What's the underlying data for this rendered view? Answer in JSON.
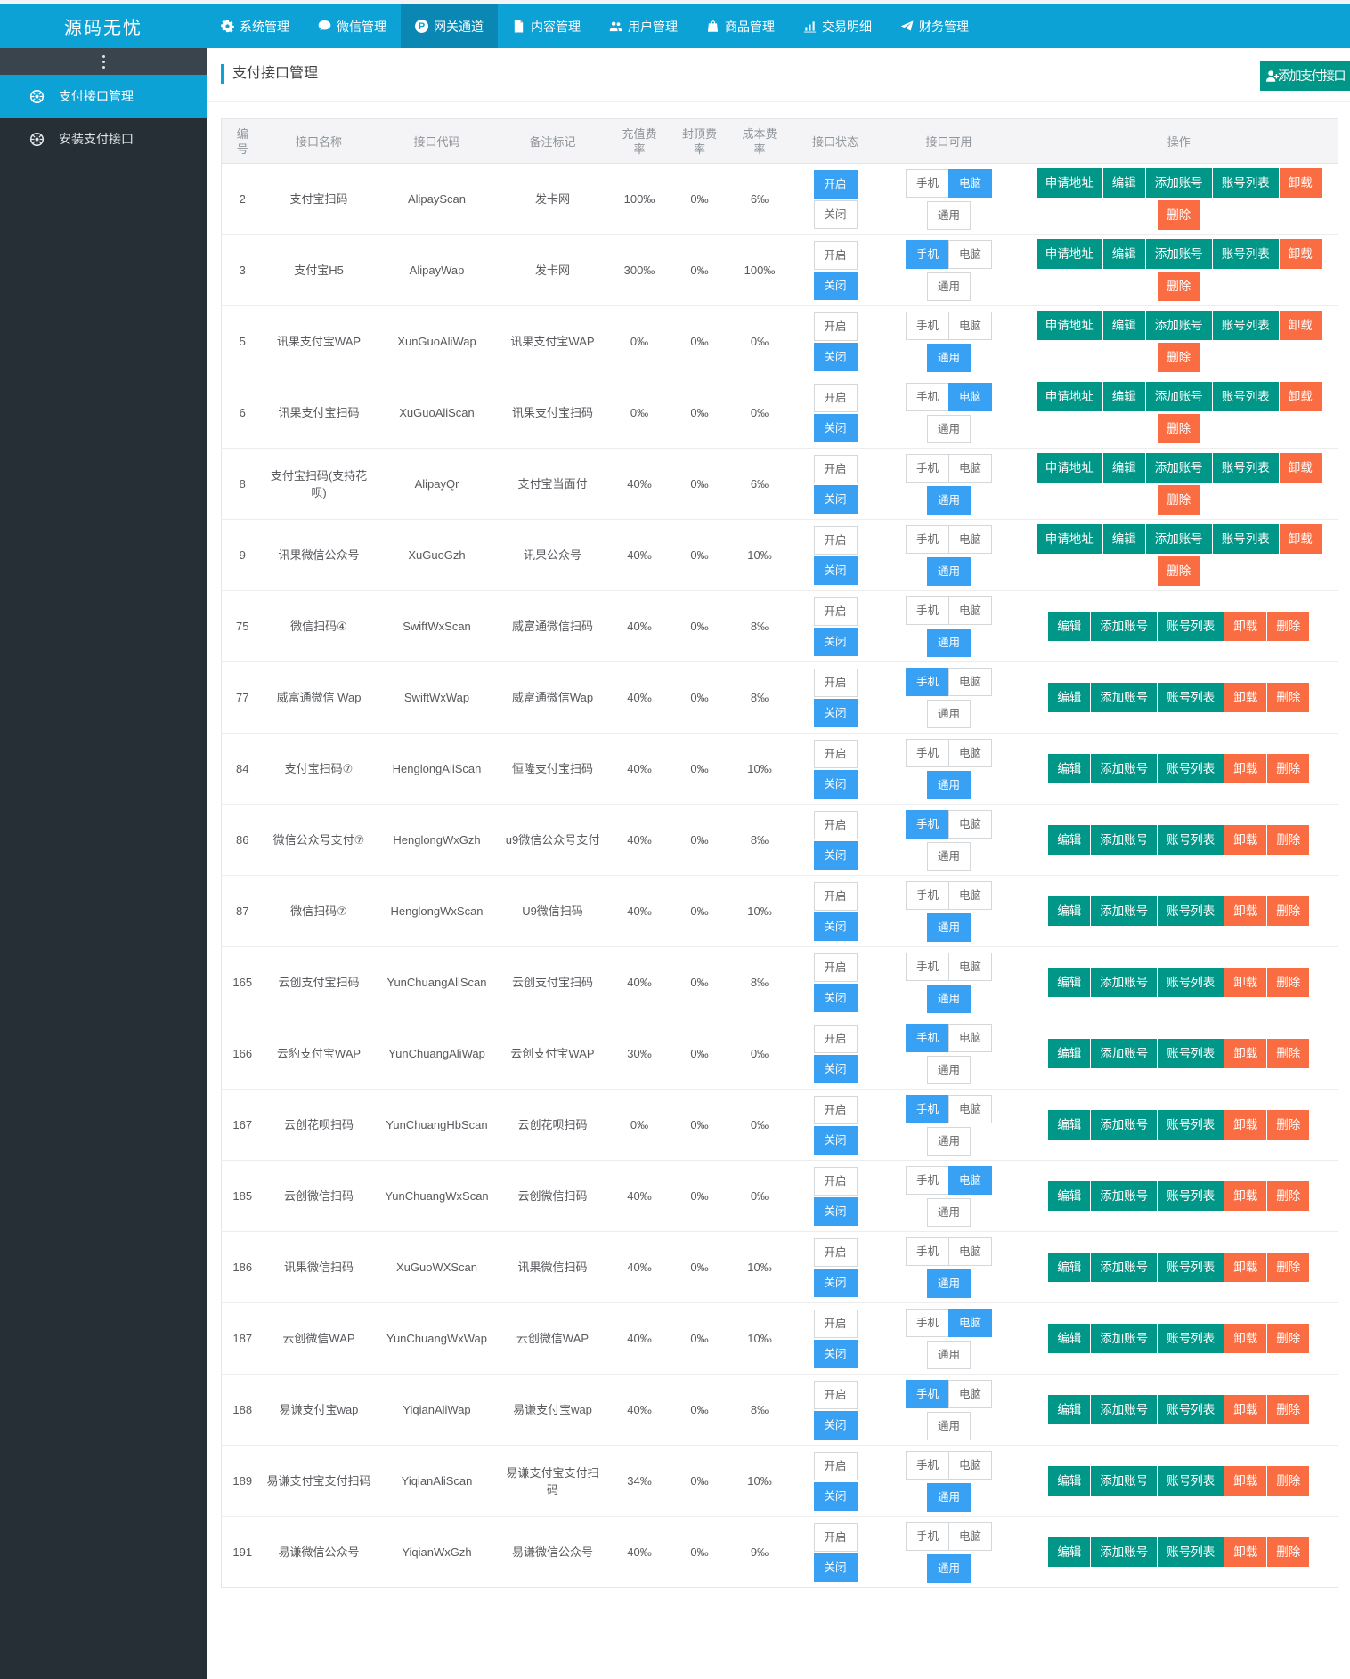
{
  "colors": {
    "nav": "#0CA2D6",
    "blue": "#38A1F3",
    "green": "#009688",
    "orange": "#FA6C41",
    "sidebar": "#262F36",
    "sidebar-strip": "#3A444C"
  },
  "navbar": {
    "logo": "源码无忧",
    "items": [
      {
        "label": "系统管理",
        "icon": "gear",
        "active": false
      },
      {
        "label": "微信管理",
        "icon": "comment",
        "active": false
      },
      {
        "label": "网关通道",
        "icon": "gateway",
        "active": true
      },
      {
        "label": "内容管理",
        "icon": "doc",
        "active": false
      },
      {
        "label": "用户管理",
        "icon": "users",
        "active": false
      },
      {
        "label": "商品管理",
        "icon": "bag",
        "active": false
      },
      {
        "label": "交易明细",
        "icon": "chart",
        "active": false
      },
      {
        "label": "财务管理",
        "icon": "plane",
        "active": false
      }
    ]
  },
  "sidebar": {
    "items": [
      {
        "label": "支付接口管理",
        "icon": "wheel",
        "active": true
      },
      {
        "label": "安装支付接口",
        "icon": "wheel",
        "active": false
      }
    ]
  },
  "page": {
    "title": "支付接口管理",
    "add_button": "添加支付接口"
  },
  "table": {
    "columns": [
      "编号",
      "接口名称",
      "接口代码",
      "备注标记",
      "充值费率",
      "封顶费率",
      "成本费率",
      "接口状态",
      "接口可用",
      "操作"
    ],
    "status_labels": {
      "on": "开启",
      "off": "关闭"
    },
    "avail_labels": {
      "phone": "手机",
      "pc": "电脑",
      "common": "通用"
    },
    "actions": [
      {
        "key": "apply",
        "label": "申请地址",
        "color": "green"
      },
      {
        "key": "edit",
        "label": "编辑",
        "color": "green"
      },
      {
        "key": "add",
        "label": "添加账号",
        "color": "green"
      },
      {
        "key": "list",
        "label": "账号列表",
        "color": "green"
      },
      {
        "key": "uninstall",
        "label": "卸载",
        "color": "orange"
      },
      {
        "key": "delete",
        "label": "删除",
        "color": "orange"
      }
    ],
    "rows": [
      {
        "id": "2",
        "name": "支付宝扫码",
        "code": "AlipayScan",
        "remark": "发卡网",
        "recharge": "100‰",
        "cap": "0‰",
        "cost": "6‰",
        "status": "on",
        "available": "pc",
        "has_apply": true
      },
      {
        "id": "3",
        "name": "支付宝H5",
        "code": "AlipayWap",
        "remark": "发卡网",
        "recharge": "300‰",
        "cap": "0‰",
        "cost": "100‰",
        "status": "off",
        "available": "phone",
        "has_apply": true
      },
      {
        "id": "5",
        "name": "讯果支付宝WAP",
        "code": "XunGuoAliWap",
        "remark": "讯果支付宝WAP",
        "recharge": "0‰",
        "cap": "0‰",
        "cost": "0‰",
        "status": "off",
        "available": "common",
        "has_apply": true
      },
      {
        "id": "6",
        "name": "讯果支付宝扫码",
        "code": "XuGuoAliScan",
        "remark": "讯果支付宝扫码",
        "recharge": "0‰",
        "cap": "0‰",
        "cost": "0‰",
        "status": "off",
        "available": "pc",
        "has_apply": true
      },
      {
        "id": "8",
        "name": "支付宝扫码(支持花呗)",
        "code": "AlipayQr",
        "remark": "支付宝当面付",
        "recharge": "40‰",
        "cap": "0‰",
        "cost": "6‰",
        "status": "off",
        "available": "common",
        "has_apply": true
      },
      {
        "id": "9",
        "name": "讯果微信公众号",
        "code": "XuGuoGzh",
        "remark": "讯果公众号",
        "recharge": "40‰",
        "cap": "0‰",
        "cost": "10‰",
        "status": "off",
        "available": "common",
        "has_apply": true
      },
      {
        "id": "75",
        "name": "微信扫码④",
        "code": "SwiftWxScan",
        "remark": "威富通微信扫码",
        "recharge": "40‰",
        "cap": "0‰",
        "cost": "8‰",
        "status": "off",
        "available": "common",
        "has_apply": false
      },
      {
        "id": "77",
        "name": "威富通微信 Wap",
        "code": "SwiftWxWap",
        "remark": "威富通微信Wap",
        "recharge": "40‰",
        "cap": "0‰",
        "cost": "8‰",
        "status": "off",
        "available": "phone",
        "has_apply": false
      },
      {
        "id": "84",
        "name": "支付宝扫码⑦",
        "code": "HenglongAliScan",
        "remark": "恒隆支付宝扫码",
        "recharge": "40‰",
        "cap": "0‰",
        "cost": "10‰",
        "status": "off",
        "available": "common",
        "has_apply": false
      },
      {
        "id": "86",
        "name": "微信公众号支付⑦",
        "code": "HenglongWxGzh",
        "remark": "u9微信公众号支付",
        "recharge": "40‰",
        "cap": "0‰",
        "cost": "8‰",
        "status": "off",
        "available": "phone",
        "has_apply": false
      },
      {
        "id": "87",
        "name": "微信扫码⑦",
        "code": "HenglongWxScan",
        "remark": "U9微信扫码",
        "recharge": "40‰",
        "cap": "0‰",
        "cost": "10‰",
        "status": "off",
        "available": "common",
        "has_apply": false
      },
      {
        "id": "165",
        "name": "云创支付宝扫码",
        "code": "YunChuangAliScan",
        "remark": "云创支付宝扫码",
        "recharge": "40‰",
        "cap": "0‰",
        "cost": "8‰",
        "status": "off",
        "available": "common",
        "has_apply": false
      },
      {
        "id": "166",
        "name": "云豹支付宝WAP",
        "code": "YunChuangAliWap",
        "remark": "云创支付宝WAP",
        "recharge": "30‰",
        "cap": "0‰",
        "cost": "0‰",
        "status": "off",
        "available": "phone",
        "has_apply": false
      },
      {
        "id": "167",
        "name": "云创花呗扫码",
        "code": "YunChuangHbScan",
        "remark": "云创花呗扫码",
        "recharge": "0‰",
        "cap": "0‰",
        "cost": "0‰",
        "status": "off",
        "available": "phone",
        "has_apply": false
      },
      {
        "id": "185",
        "name": "云创微信扫码",
        "code": "YunChuangWxScan",
        "remark": "云创微信扫码",
        "recharge": "40‰",
        "cap": "0‰",
        "cost": "0‰",
        "status": "off",
        "available": "pc",
        "has_apply": false
      },
      {
        "id": "186",
        "name": "讯果微信扫码",
        "code": "XuGuoWXScan",
        "remark": "讯果微信扫码",
        "recharge": "40‰",
        "cap": "0‰",
        "cost": "10‰",
        "status": "off",
        "available": "common",
        "has_apply": false
      },
      {
        "id": "187",
        "name": "云创微信WAP",
        "code": "YunChuangWxWap",
        "remark": "云创微信WAP",
        "recharge": "40‰",
        "cap": "0‰",
        "cost": "10‰",
        "status": "off",
        "available": "pc",
        "has_apply": false
      },
      {
        "id": "188",
        "name": "易谦支付宝wap",
        "code": "YiqianAliWap",
        "remark": "易谦支付宝wap",
        "recharge": "40‰",
        "cap": "0‰",
        "cost": "8‰",
        "status": "off",
        "available": "phone",
        "has_apply": false
      },
      {
        "id": "189",
        "name": "易谦支付宝支付扫码",
        "code": "YiqianAliScan",
        "remark": "易谦支付宝支付扫码",
        "recharge": "34‰",
        "cap": "0‰",
        "cost": "10‰",
        "status": "off",
        "available": "common",
        "has_apply": false
      },
      {
        "id": "191",
        "name": "易谦微信公众号",
        "code": "YiqianWxGzh",
        "remark": "易谦微信公众号",
        "recharge": "40‰",
        "cap": "0‰",
        "cost": "9‰",
        "status": "off",
        "available": "common",
        "has_apply": false
      }
    ]
  }
}
